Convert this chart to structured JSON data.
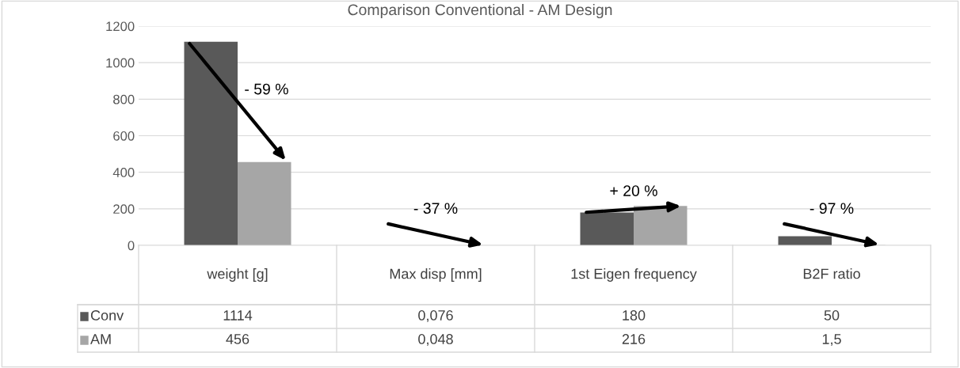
{
  "chart_data": {
    "type": "bar",
    "title": "Comparison Conventional - AM Design",
    "categories": [
      "weight [g]",
      "Max disp [mm]",
      "1st Eigen frequency",
      "B2F ratio"
    ],
    "series": [
      {
        "name": "Conv",
        "color": "#595959",
        "values": [
          1114,
          0.076,
          180,
          50
        ],
        "value_labels": [
          "1114",
          "0,076",
          "180",
          "50"
        ]
      },
      {
        "name": "AM",
        "color": "#a6a6a6",
        "values": [
          456,
          0.048,
          216,
          1.5
        ],
        "value_labels": [
          "456",
          "0,048",
          "216",
          "1,5"
        ]
      }
    ],
    "ylim": [
      0,
      1200
    ],
    "yticks": [
      0,
      200,
      400,
      600,
      800,
      1000,
      1200
    ],
    "grid": "y",
    "legend": "bottom",
    "annotations": [
      "- 59 %",
      "- 37 %",
      "+ 20 %",
      "- 97 %"
    ]
  }
}
